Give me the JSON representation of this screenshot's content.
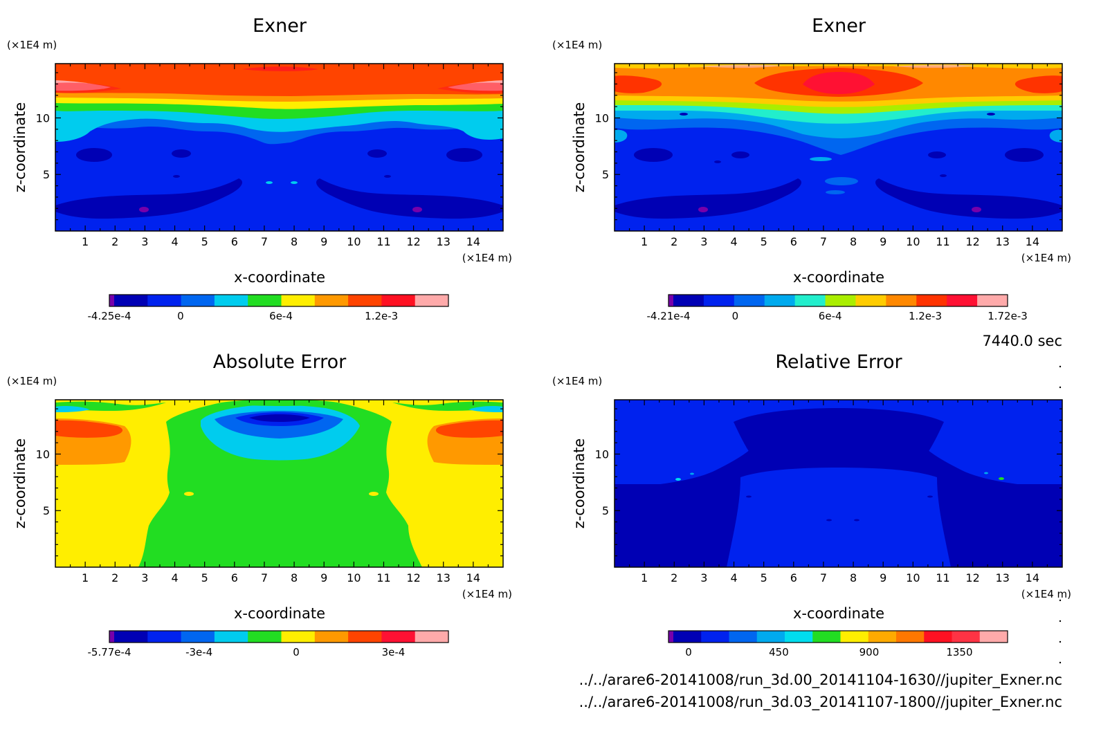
{
  "time_label": "7440.0 sec",
  "footer_files": [
    "../../arare6-20141008/run_3d.00_20141104-1630//jupiter_Exner.nc",
    "../../arare6-20141008/run_3d.03_20141107-1800//jupiter_Exner.nc"
  ],
  "chart_data": [
    {
      "type": "heatmap",
      "title": "Exner",
      "xlabel": "x-coordinate",
      "ylabel": "z-coordinate",
      "x_unit": "(×1E4 m)",
      "y_unit": "(×1E4 m)",
      "xlim": [
        0,
        15
      ],
      "ylim": [
        0,
        14.8
      ],
      "x_ticks": [
        "1",
        "2",
        "3",
        "4",
        "5",
        "6",
        "7",
        "8",
        "9",
        "10",
        "11",
        "12",
        "13",
        "14"
      ],
      "y_ticks": [
        "5",
        "10"
      ],
      "colorbar": {
        "colors": [
          "#7700aa",
          "#0000b4",
          "#0022ee",
          "#0066f0",
          "#00ccee",
          "#22dd22",
          "#ffee00",
          "#ff9900",
          "#ff4400",
          "#ff1122",
          "#ffaaaa"
        ],
        "labels": [
          {
            "value": -0.000425,
            "text": "-4.25e-4"
          },
          {
            "value": 0,
            "text": "0"
          },
          {
            "value": 0.0006,
            "text": "6e-4"
          },
          {
            "value": 0.0012,
            "text": "1.2e-3"
          }
        ],
        "range": [
          -0.000425,
          0.0016
        ]
      }
    },
    {
      "type": "heatmap",
      "title": "Exner",
      "xlabel": "x-coordinate",
      "ylabel": "z-coordinate",
      "x_unit": "(×1E4 m)",
      "y_unit": "(×1E4 m)",
      "xlim": [
        0,
        15
      ],
      "ylim": [
        0,
        14.8
      ],
      "x_ticks": [
        "1",
        "2",
        "3",
        "4",
        "5",
        "6",
        "7",
        "8",
        "9",
        "10",
        "11",
        "12",
        "13",
        "14"
      ],
      "y_ticks": [
        "5",
        "10"
      ],
      "colorbar": {
        "colors": [
          "#7700aa",
          "#0000b4",
          "#0022ee",
          "#0066f0",
          "#00aaee",
          "#22eecc",
          "#aaee00",
          "#ffcc00",
          "#ff8800",
          "#ff3300",
          "#ff1133",
          "#ffaaaa"
        ],
        "labels": [
          {
            "value": -0.000421,
            "text": "-4.21e-4"
          },
          {
            "value": 0,
            "text": "0"
          },
          {
            "value": 0.0006,
            "text": "6e-4"
          },
          {
            "value": 0.0012,
            "text": "1.2e-3"
          },
          {
            "value": 0.00172,
            "text": "1.72e-3"
          }
        ],
        "range": [
          -0.000421,
          0.00172
        ]
      }
    },
    {
      "type": "heatmap",
      "title": "Absolute Error",
      "xlabel": "x-coordinate",
      "ylabel": "z-coordinate",
      "x_unit": "(×1E4 m)",
      "y_unit": "(×1E4 m)",
      "xlim": [
        0,
        15
      ],
      "ylim": [
        0,
        14.8
      ],
      "x_ticks": [
        "1",
        "2",
        "3",
        "4",
        "5",
        "6",
        "7",
        "8",
        "9",
        "10",
        "11",
        "12",
        "13",
        "14"
      ],
      "y_ticks": [
        "5",
        "10"
      ],
      "colorbar": {
        "colors": [
          "#7700aa",
          "#0000b4",
          "#0022ee",
          "#0066f0",
          "#00ccee",
          "#22dd22",
          "#ffee00",
          "#ff9900",
          "#ff4400",
          "#ff1133",
          "#ffaaaa"
        ],
        "labels": [
          {
            "value": -0.000577,
            "text": "-5.77e-4"
          },
          {
            "value": -0.0003,
            "text": "-3e-4"
          },
          {
            "value": 0,
            "text": "0"
          },
          {
            "value": 0.0003,
            "text": "3e-4"
          }
        ],
        "range": [
          -0.000577,
          0.00047
        ]
      }
    },
    {
      "type": "heatmap",
      "title": "Relative Error",
      "xlabel": "x-coordinate",
      "ylabel": "z-coordinate",
      "x_unit": "(×1E4 m)",
      "y_unit": "(×1E4 m)",
      "xlim": [
        0,
        15
      ],
      "ylim": [
        0,
        14.8
      ],
      "x_ticks": [
        "1",
        "2",
        "3",
        "4",
        "5",
        "6",
        "7",
        "8",
        "9",
        "10",
        "11",
        "12",
        "13",
        "14"
      ],
      "y_ticks": [
        "5",
        "10"
      ],
      "colorbar": {
        "colors": [
          "#7700aa",
          "#0000b4",
          "#0022ee",
          "#0066f0",
          "#00aaee",
          "#00ddee",
          "#22dd22",
          "#ffee00",
          "#ffaa00",
          "#ff7700",
          "#ff1122",
          "#ff3344",
          "#ffaaaa"
        ],
        "labels": [
          {
            "value": 0,
            "text": "0"
          },
          {
            "value": 450,
            "text": "450"
          },
          {
            "value": 900,
            "text": "900"
          },
          {
            "value": 1350,
            "text": "1350"
          }
        ],
        "range": [
          -100,
          1590
        ]
      }
    }
  ]
}
